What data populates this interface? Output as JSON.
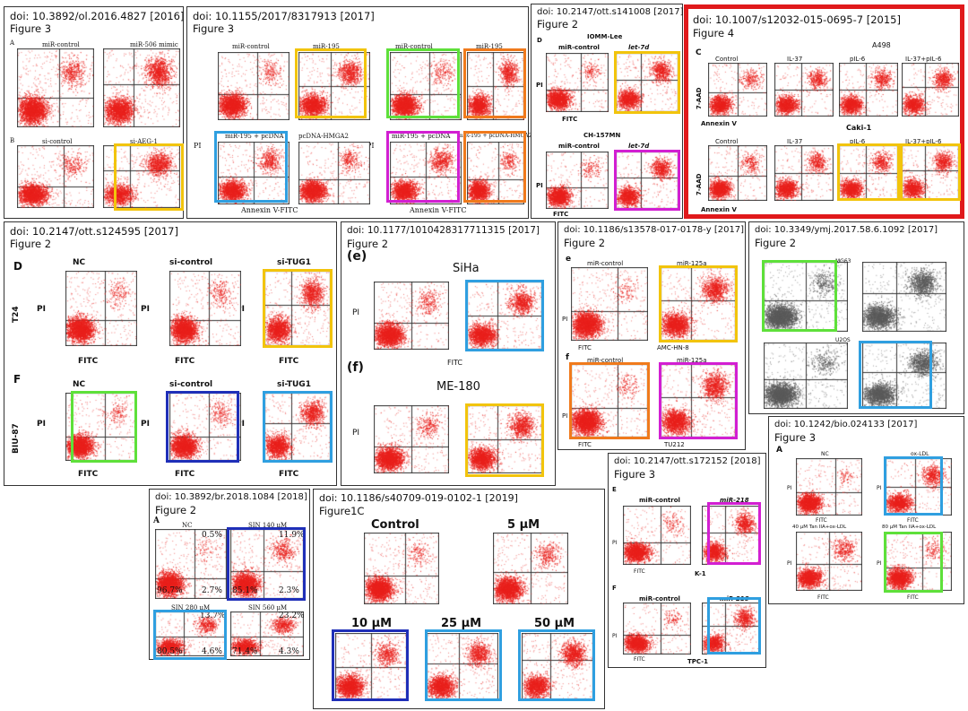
{
  "panels": {
    "p1": {
      "doi": "doi: 10.3892/ol.2016.4827 [2016]",
      "figure": "Figure 3",
      "labels": [
        "A",
        "B",
        "miR-control",
        "miR-506 mimic",
        "si-control",
        "si-AEG-1"
      ]
    },
    "p2": {
      "doi": "doi: 10.1155/2017/8317913 [2017]",
      "figure": "Figure 3",
      "labels": [
        "miR-control",
        "miR-195",
        "miR-195 + pcDNA",
        "pcDNA-HMGA2",
        "Annexin V-FITC",
        "PI",
        "miR-control",
        "miR-195",
        "miR-195 + pcDNA",
        "miR-195 + pcDNA-HMGA2",
        "Annexin V-FITC",
        "PI"
      ]
    },
    "p3": {
      "doi": "doi: 10.2147/ott.s141008 [2017]",
      "figure": "Figure 2",
      "labels": [
        "D",
        "IOMM-Lee",
        "miR-control",
        "let-7d",
        "CH-157MN",
        "miR-control",
        "let-7d",
        "FITC",
        "FITC",
        "PI",
        "PI"
      ]
    },
    "p4": {
      "doi": "doi: 10.1007/s12032-015-0695-7 [2015]",
      "figure": "Figure 4",
      "labels": [
        "C",
        "A498",
        "Control",
        "IL-37",
        "pIL-6",
        "IL-37+pIL-6",
        "7-AAD",
        "Annexin V",
        "Caki-1",
        "Control",
        "IL-37",
        "pIL-6",
        "IL-37+pIL-6",
        "7-AAD",
        "Annexin V"
      ]
    },
    "p5": {
      "doi": "doi: 10.2147/ott.s124595 [2017]",
      "figure": "Figure 2",
      "labels": [
        "D",
        "NC",
        "si-control",
        "si-TUG1",
        "T24",
        "F",
        "NC",
        "si-control",
        "si-TUG1",
        "BIU-87",
        "FITC",
        "PI"
      ]
    },
    "p6": {
      "doi": "doi: 10.1177/1010428317711315 [2017]",
      "figure": "Figure 2",
      "labels": [
        "(e)",
        "SiHa",
        "PI",
        "FITC",
        "(f)",
        "ME-180",
        "PI"
      ]
    },
    "p7": {
      "doi": "doi: 10.1186/s13578-017-0178-y [2017]",
      "figure": "Figure 2",
      "labels": [
        "e",
        "miR-control",
        "miR-125a",
        "FITC",
        "AMC-HN-8",
        "f",
        "miR-control",
        "miR-125a",
        "FITC",
        "TU212",
        "PI"
      ]
    },
    "p8": {
      "doi": "doi: 10.3349/ymj.2017.58.6.1092 [2017]",
      "figure": "Figure 2",
      "labels": [
        "MG63",
        "U2OS"
      ]
    },
    "p9": {
      "doi": "doi: 10.1242/bio.024133 [2017]",
      "figure": "Figure 3",
      "labels": [
        "A",
        "NC",
        "ox-LDL",
        "40 μM Tan IIA+ox-LDL",
        "80 μM Tan IIA+ox-LDL",
        "FITC",
        "PI"
      ]
    },
    "p10": {
      "doi": "doi: 10.2147/ott.s172152 [2018]",
      "figure": "Figure 3",
      "labels": [
        "E",
        "miR-control",
        "miR-218",
        "K-1",
        "F",
        "miR-control",
        "miR-218",
        "TPC-1",
        "FITC",
        "PI"
      ]
    },
    "p11": {
      "doi": "doi: 10.3892/br.2018.1084 [2018]",
      "figure": "Figure 2",
      "labels": [
        "A",
        "NC",
        "SIN 140 μM",
        "SIN 280 μM",
        "SIN 560 μM"
      ],
      "quadrants": [
        [
          "0.5%",
          "96.7%",
          "2.7%"
        ],
        [
          "11.9%",
          "85.1%",
          "2.3%"
        ],
        [
          "13.7%",
          "80.5%",
          "4.6%"
        ],
        [
          "23.2%",
          "71.4%",
          "4.3%"
        ]
      ]
    },
    "p12": {
      "doi": "doi: 10.1186/s40709-019-0102-1 [2019]",
      "figure": "Figure1C",
      "labels": [
        "Control",
        "5 μM",
        "10 μM",
        "25 μM",
        "50 μM"
      ]
    }
  },
  "colors": {
    "red_frame": "#e0191b",
    "yellow": "#f2c40c",
    "green": "#5ee03a",
    "blue": "#2f9fe0",
    "navy": "#1f2fb8",
    "orange": "#f07a1c",
    "magenta": "#d21fd2",
    "dots_red": "#e8201c",
    "dots_gray": "#5a5a5a"
  }
}
